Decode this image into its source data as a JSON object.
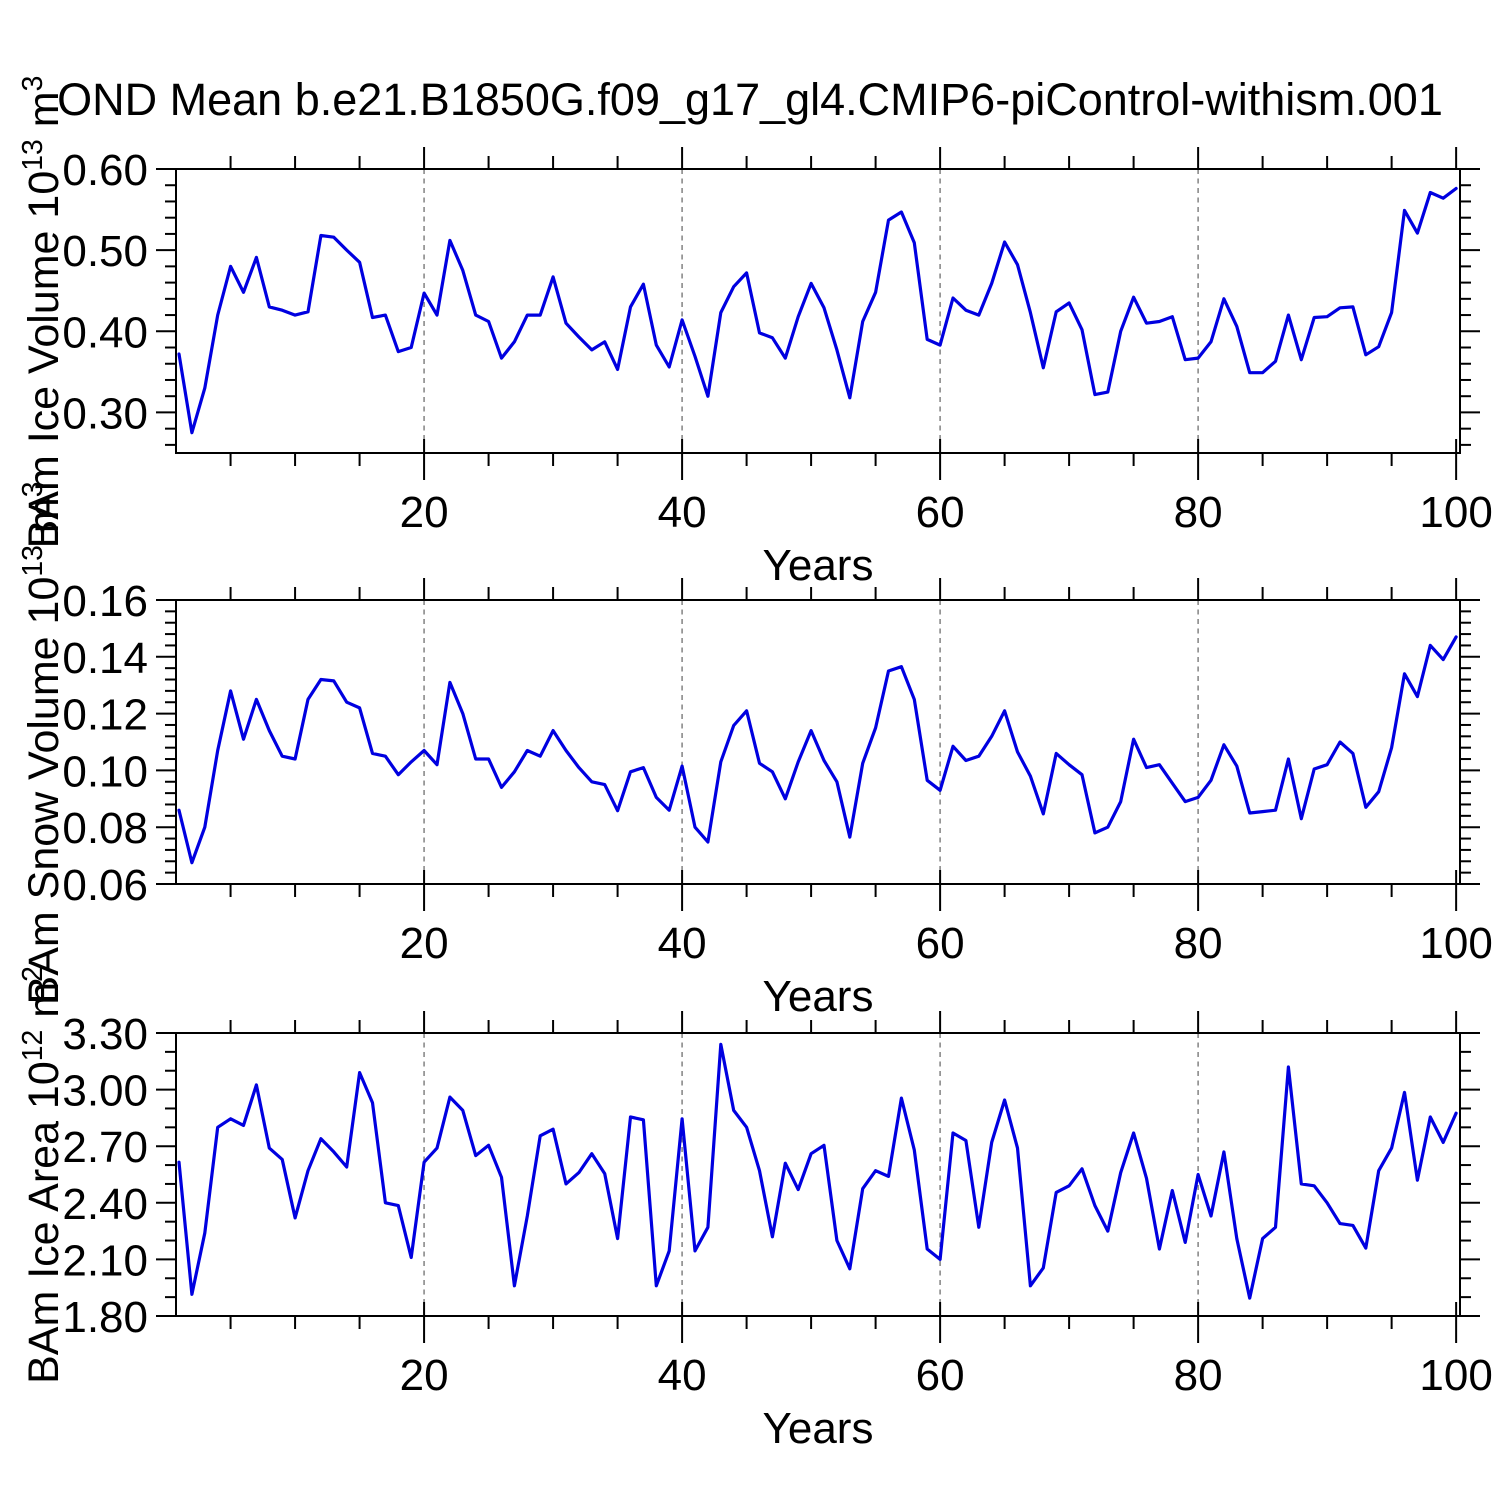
{
  "chart_data": {
    "type": "line",
    "title": "OND Mean b.e21.B1850G.f09_g17_gl4.CMIP6-piControl-withism.001",
    "xlabel": "Years",
    "x_start_year": 1,
    "x_end_year": 100,
    "x_major_ticks": [
      20,
      40,
      60,
      80,
      100
    ],
    "x_tick_labels": [
      "20",
      "40",
      "60",
      "80",
      "100"
    ],
    "x_minor_step": 5,
    "grid_x": [
      20,
      40,
      60,
      80
    ],
    "grid_style": "dashed-gray-vertical",
    "line_color": "#0000e0",
    "axis_color": "#000000",
    "gridline_color": "#8a8a8a",
    "panels": [
      {
        "name": "ice-volume",
        "ylabel": "BAm Ice Volume 10^13 m^3",
        "ylabel_parts": [
          {
            "text": "BAm Ice Volume 10",
            "sup": false
          },
          {
            "text": "13",
            "sup": true
          },
          {
            "text": " m",
            "sup": false
          },
          {
            "text": "3",
            "sup": true
          }
        ],
        "ylim": [
          0.25,
          0.6
        ],
        "yticks": [
          0.3,
          0.4,
          0.5,
          0.6
        ],
        "ytick_labels": [
          "0.30",
          "0.40",
          "0.50",
          "0.60"
        ],
        "y_major_step": 0.1,
        "y_minor_step": 0.02,
        "values": [
          0.372,
          0.275,
          0.33,
          0.42,
          0.48,
          0.448,
          0.491,
          0.43,
          0.426,
          0.42,
          0.424,
          0.518,
          0.516,
          0.5,
          0.485,
          0.417,
          0.42,
          0.375,
          0.38,
          0.447,
          0.42,
          0.512,
          0.475,
          0.42,
          0.412,
          0.367,
          0.387,
          0.42,
          0.42,
          0.467,
          0.41,
          0.393,
          0.377,
          0.387,
          0.353,
          0.43,
          0.458,
          0.383,
          0.356,
          0.414,
          0.369,
          0.32,
          0.423,
          0.455,
          0.472,
          0.398,
          0.392,
          0.367,
          0.418,
          0.459,
          0.429,
          0.377,
          0.318,
          0.412,
          0.448,
          0.537,
          0.547,
          0.509,
          0.39,
          0.383,
          0.441,
          0.426,
          0.42,
          0.459,
          0.51,
          0.482,
          0.423,
          0.355,
          0.424,
          0.435,
          0.402,
          0.322,
          0.325,
          0.4,
          0.442,
          0.41,
          0.412,
          0.418,
          0.365,
          0.367,
          0.387,
          0.44,
          0.406,
          0.349,
          0.349,
          0.363,
          0.42,
          0.365,
          0.417,
          0.418,
          0.429,
          0.43,
          0.371,
          0.381,
          0.423,
          0.549,
          0.521,
          0.571,
          0.564,
          0.576
        ]
      },
      {
        "name": "snow-volume",
        "ylabel": "BAm Snow Volume 10^13 m^3",
        "ylabel_parts": [
          {
            "text": "BAm Snow Volume 10",
            "sup": false
          },
          {
            "text": "13",
            "sup": true
          },
          {
            "text": " m",
            "sup": false
          },
          {
            "text": "3",
            "sup": true
          }
        ],
        "ylim": [
          0.06,
          0.16
        ],
        "yticks": [
          0.06,
          0.08,
          0.1,
          0.12,
          0.14,
          0.16
        ],
        "ytick_labels": [
          "0.06",
          "0.08",
          "0.10",
          "0.12",
          "0.14",
          "0.16"
        ],
        "y_major_step": 0.02,
        "y_minor_step": 0.004,
        "values": [
          0.086,
          0.0675,
          0.08,
          0.107,
          0.128,
          0.111,
          0.125,
          0.114,
          0.105,
          0.104,
          0.125,
          0.132,
          0.1315,
          0.124,
          0.122,
          0.106,
          0.105,
          0.0985,
          0.103,
          0.107,
          0.102,
          0.131,
          0.12,
          0.104,
          0.104,
          0.094,
          0.0995,
          0.107,
          0.105,
          0.114,
          0.107,
          0.101,
          0.096,
          0.095,
          0.0858,
          0.0995,
          0.101,
          0.0905,
          0.086,
          0.1015,
          0.08,
          0.0748,
          0.103,
          0.1158,
          0.121,
          0.1025,
          0.0995,
          0.09,
          0.103,
          0.114,
          0.1035,
          0.096,
          0.0765,
          0.1025,
          0.115,
          0.135,
          0.1365,
          0.125,
          0.0965,
          0.093,
          0.1085,
          0.1035,
          0.105,
          0.112,
          0.121,
          0.1065,
          0.098,
          0.0847,
          0.106,
          0.102,
          0.0985,
          0.078,
          0.08,
          0.089,
          0.111,
          0.101,
          0.102,
          0.0955,
          0.089,
          0.0905,
          0.0965,
          0.109,
          0.1015,
          0.085,
          0.0855,
          0.086,
          0.104,
          0.083,
          0.1005,
          0.102,
          0.11,
          0.106,
          0.087,
          0.0925,
          0.108,
          0.134,
          0.126,
          0.144,
          0.139,
          0.147
        ]
      },
      {
        "name": "ice-area",
        "ylabel": "BAm Ice Area 10^12 m^2",
        "ylabel_parts": [
          {
            "text": "BAm Ice Area 10",
            "sup": false
          },
          {
            "text": "12",
            "sup": true
          },
          {
            "text": " m",
            "sup": false
          },
          {
            "text": "2",
            "sup": true
          }
        ],
        "ylim": [
          1.8,
          3.3
        ],
        "yticks": [
          1.8,
          2.1,
          2.4,
          2.7,
          3.0,
          3.3
        ],
        "ytick_labels": [
          "1.80",
          "2.10",
          "2.40",
          "2.70",
          "3.00",
          "3.30"
        ],
        "y_major_step": 0.3,
        "y_minor_step": 0.1,
        "values": [
          2.615,
          1.915,
          2.24,
          2.8,
          2.845,
          2.81,
          3.025,
          2.69,
          2.63,
          2.32,
          2.57,
          2.74,
          2.67,
          2.59,
          3.09,
          2.93,
          2.4,
          2.385,
          2.11,
          2.615,
          2.69,
          2.96,
          2.89,
          2.65,
          2.705,
          2.535,
          1.96,
          2.33,
          2.755,
          2.79,
          2.5,
          2.56,
          2.66,
          2.555,
          2.21,
          2.855,
          2.84,
          1.96,
          2.145,
          2.845,
          2.145,
          2.27,
          3.24,
          2.89,
          2.8,
          2.57,
          2.22,
          2.61,
          2.47,
          2.66,
          2.705,
          2.2,
          2.05,
          2.475,
          2.57,
          2.54,
          2.955,
          2.68,
          2.155,
          2.1,
          2.77,
          2.73,
          2.27,
          2.72,
          2.945,
          2.69,
          1.96,
          2.055,
          2.455,
          2.49,
          2.58,
          2.385,
          2.25,
          2.56,
          2.77,
          2.53,
          2.155,
          2.465,
          2.19,
          2.55,
          2.33,
          2.67,
          2.21,
          1.895,
          2.21,
          2.27,
          3.12,
          2.5,
          2.49,
          2.4,
          2.29,
          2.28,
          2.16,
          2.57,
          2.69,
          2.985,
          2.52,
          2.855,
          2.72,
          2.875
        ]
      }
    ]
  }
}
